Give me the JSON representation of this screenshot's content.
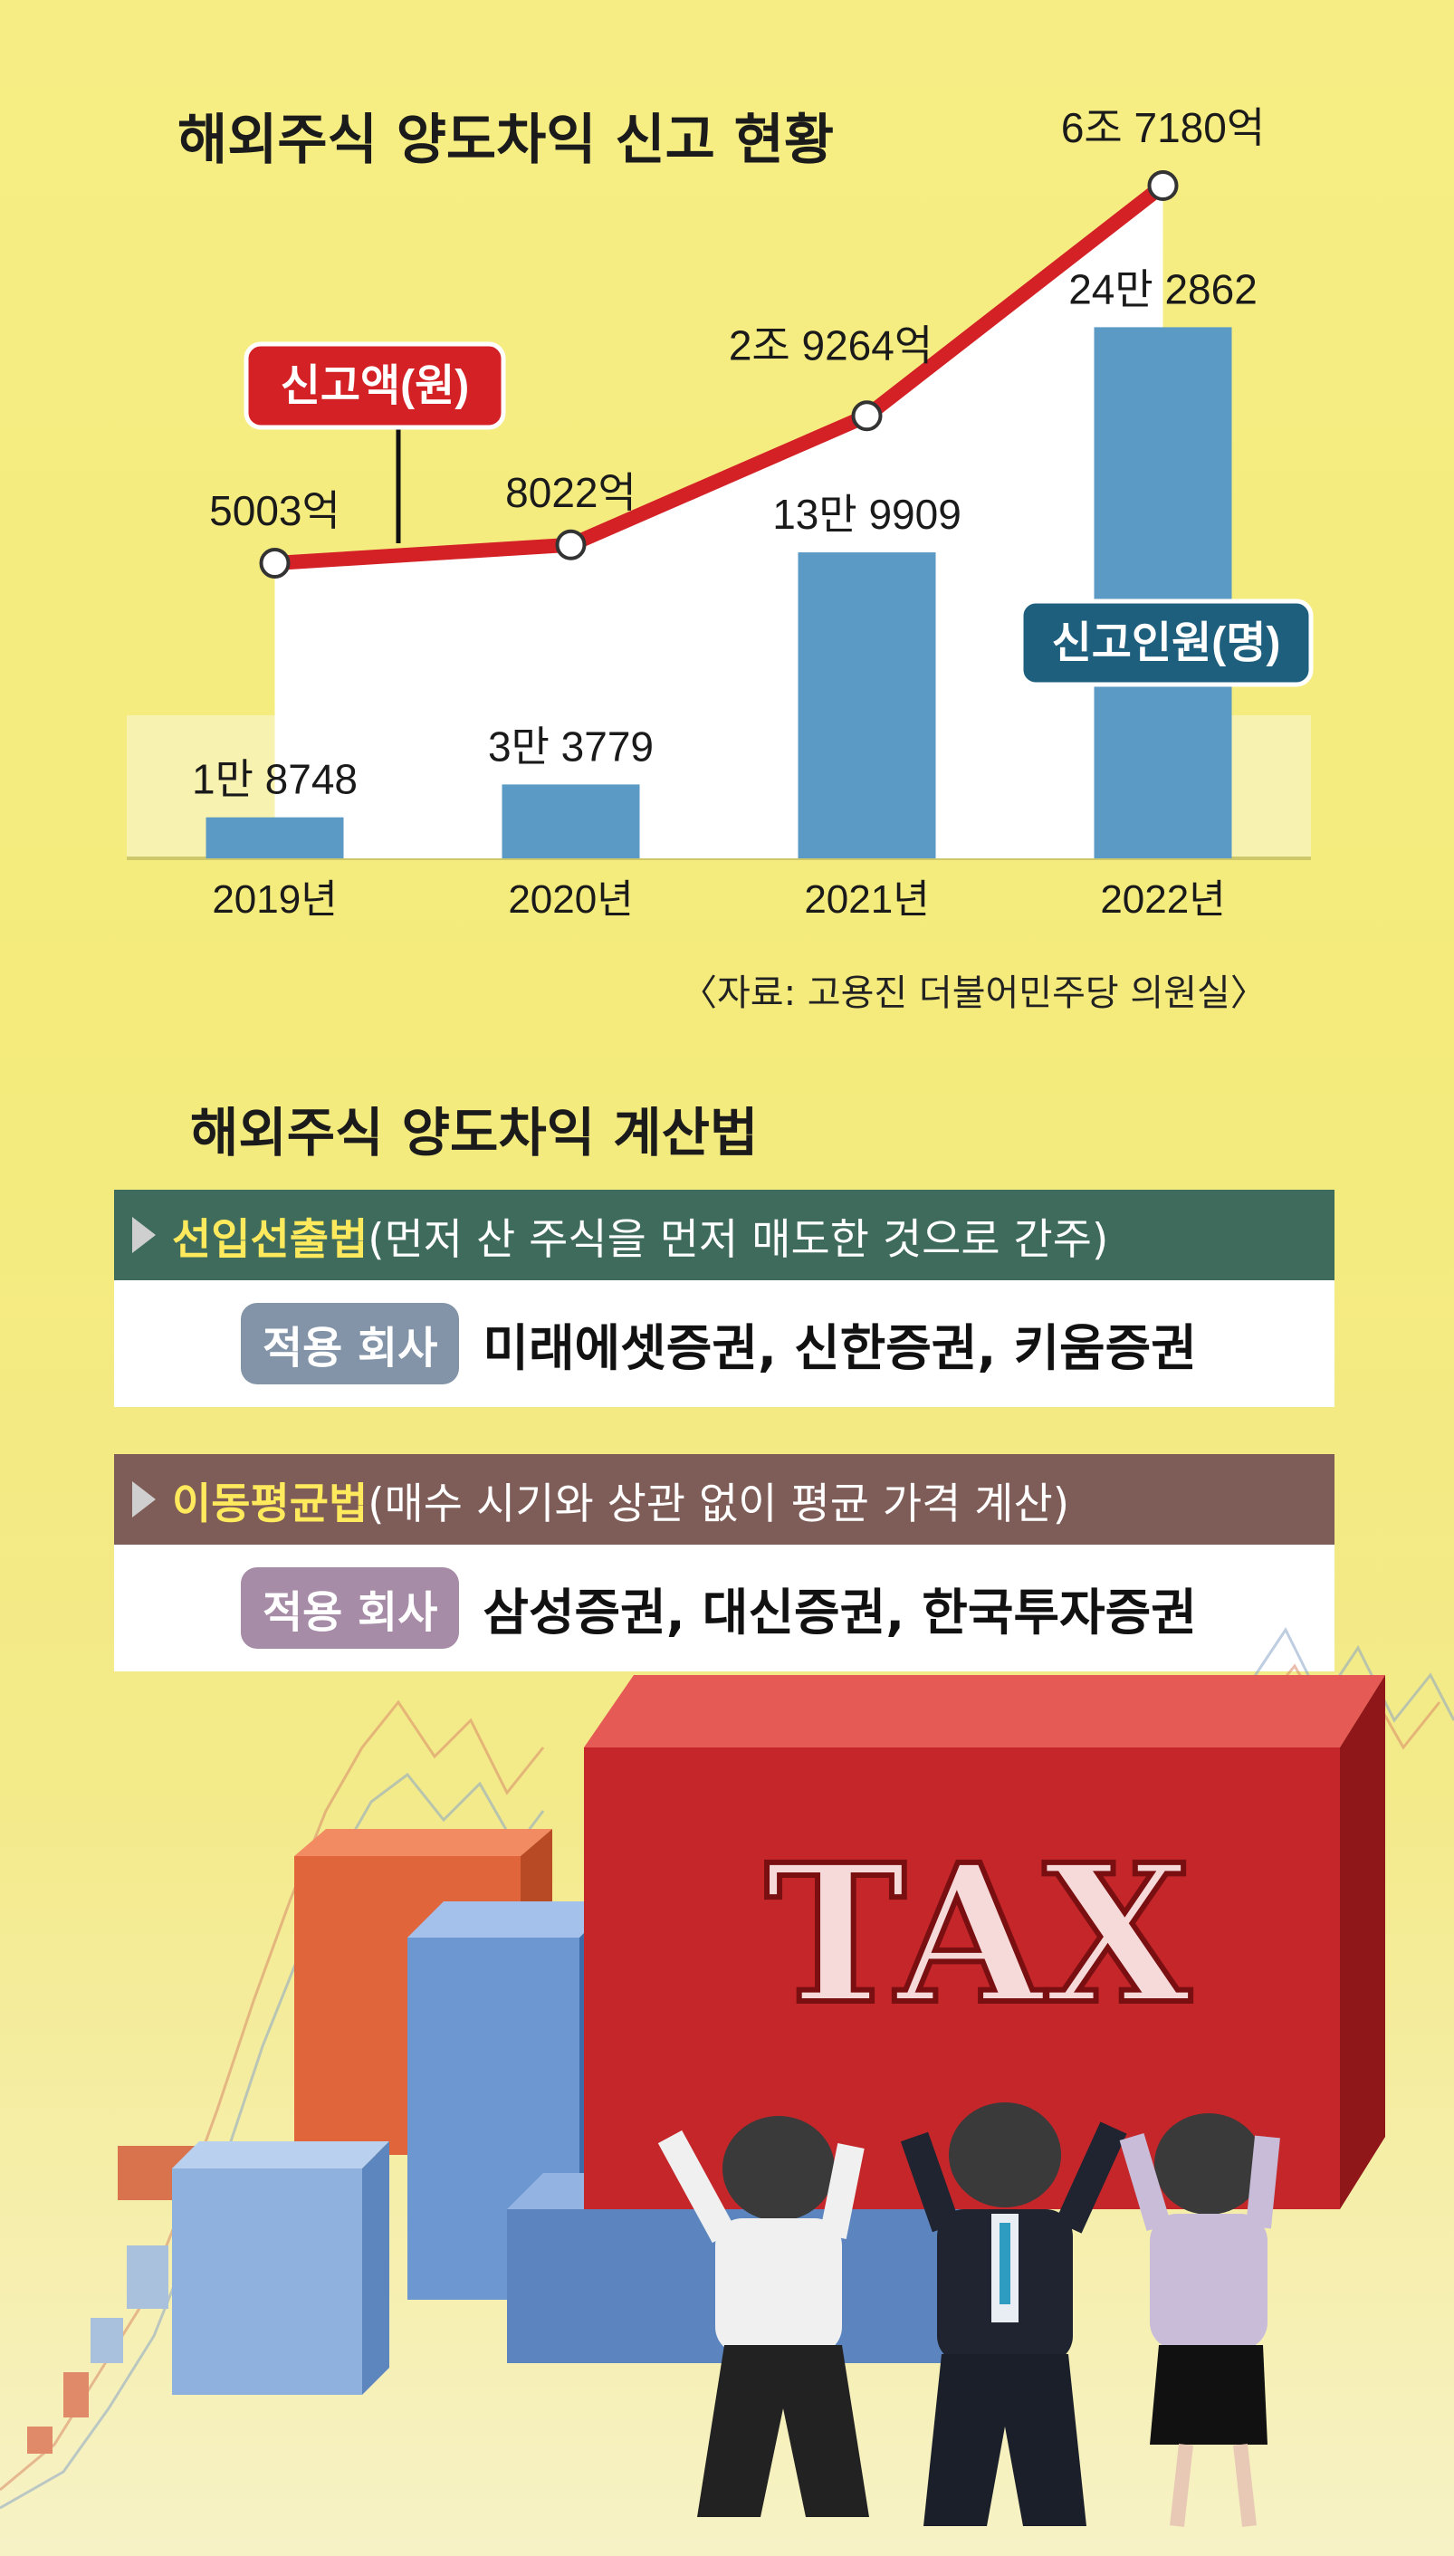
{
  "chart": {
    "title": "해외주식 양도차익 신고 현황",
    "source": "〈자료: 고용진 더불어민주당 의원실〉",
    "amount_badge": "신고액(원)",
    "people_badge": "신고인원(명)"
  },
  "chart_data": {
    "type": "bar",
    "title": "해외주식 양도차익 신고 현황",
    "categories": [
      "2019년",
      "2020년",
      "2021년",
      "2022년"
    ],
    "series": [
      {
        "name": "신고인원(명)",
        "type": "bar",
        "values": [
          18748,
          33779,
          139909,
          242862
        ],
        "labels": [
          "1만 8748",
          "3만 3779",
          "13만 9909",
          "24만 2862"
        ],
        "color": "#5b9ac4"
      },
      {
        "name": "신고액(원)",
        "type": "line",
        "values": [
          5003,
          8022,
          29264,
          67180
        ],
        "labels": [
          "5003억",
          "8022억",
          "2조 9264억",
          "6조 7180억"
        ],
        "color": "#d42126"
      }
    ]
  },
  "methods": {
    "title": "해외주식 양도차익 계산법",
    "items": [
      {
        "name": "선입선출법",
        "desc": "(먼저 산 주식을 먼저 매도한 것으로 간주)",
        "pill": "적용 회사",
        "companies": "미래에셋증권, 신한증권, 키움증권",
        "header_color": "#3e6b5c",
        "pill_color": "#8394a8"
      },
      {
        "name": "이동평균법",
        "desc": "(매수 시기와 상관 없이 평균 가격 계산)",
        "pill": "적용 회사",
        "companies": "삼성증권, 대신증권, 한국투자증권",
        "header_color": "#7e5c58",
        "pill_color": "#a68ca6"
      }
    ]
  },
  "illustration": {
    "tax_text": "TAX"
  }
}
